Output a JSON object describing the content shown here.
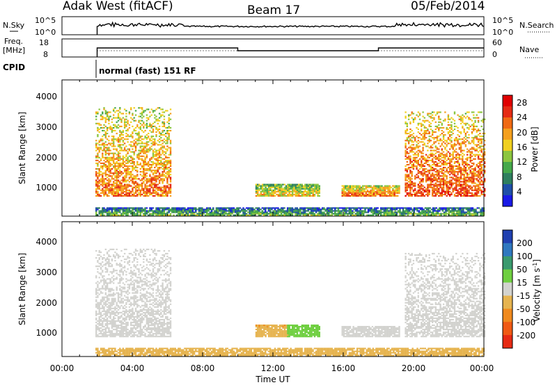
{
  "header": {
    "radar": "Adak West (fitACF)",
    "beam": "Beam 17",
    "date": "05/Feb/2014"
  },
  "status": {
    "nsky_label": "N.Sky",
    "nsky_ticks": [
      "10^5",
      "10^0"
    ],
    "nsearch_label": "N.Search",
    "nsearch_ticks": [
      "10^5",
      "10^0"
    ],
    "freq_label": "Freq.",
    "freq_unit": "[MHz]",
    "freq_ticks": [
      "18",
      "8"
    ],
    "nave_label": "Nave",
    "nave_ticks": [
      "60",
      "0"
    ],
    "cpid_label": "CPID",
    "cpid_text": "normal (fast) 151 RF",
    "freq_segments": [
      {
        "from": 2.0,
        "to": 10.0,
        "mhz": 13.0
      },
      {
        "from": 10.0,
        "to": 18.0,
        "mhz": 11.0
      },
      {
        "from": 18.0,
        "to": 24.0,
        "mhz": 13.0
      }
    ]
  },
  "chart_data": [
    {
      "type": "heatmap",
      "quantity": "Power",
      "ylabel": "Slant Range [km]",
      "ylim": [
        180,
        4500
      ],
      "y_ticks": [
        "1000",
        "2000",
        "3000",
        "4000"
      ],
      "xlim": [
        0,
        24
      ],
      "colorbar_label": "Power [dB]",
      "colorbar_ticks": [
        "4",
        "8",
        "12",
        "16",
        "20",
        "24",
        "28"
      ],
      "colorbar_range": [
        0,
        30
      ],
      "colorbar_colors": [
        "#1a1ae6",
        "#1f4fa8",
        "#2e7f5e",
        "#45a84a",
        "#8cc63f",
        "#f0d020",
        "#f5a01e",
        "#f06a14",
        "#e52b14",
        "#e00000"
      ],
      "regions": [
        {
          "t0": 1.9,
          "t1": 6.2,
          "r0": 800,
          "r1": 3600,
          "level": 22
        },
        {
          "t0": 11.0,
          "t1": 14.6,
          "r0": 800,
          "r1": 1200,
          "level": 18
        },
        {
          "t0": 15.9,
          "t1": 19.2,
          "r0": 800,
          "r1": 1150,
          "level": 22
        },
        {
          "t0": 19.5,
          "t1": 24.0,
          "r0": 800,
          "r1": 3500,
          "level": 24
        },
        {
          "t0": 1.9,
          "t1": 24.0,
          "r0": 190,
          "r1": 420,
          "level": 12
        }
      ]
    },
    {
      "type": "heatmap",
      "quantity": "Velocity",
      "ylabel": "Slant Range [km]",
      "ylim": [
        180,
        4500
      ],
      "y_ticks": [
        "1000",
        "2000",
        "3000",
        "4000"
      ],
      "xlim": [
        0,
        24
      ],
      "x_ticks": [
        "00:00",
        "04:00",
        "08:00",
        "12:00",
        "16:00",
        "20:00",
        "00:00"
      ],
      "xlabel": "Time UT",
      "colorbar_label": "Velocity [m s^-1]",
      "colorbar_ticks": [
        "200",
        "100",
        "50",
        "15",
        "-15",
        "-50",
        "-100",
        "-200"
      ],
      "colorbar_colors": [
        "#2040b0",
        "#2f78bf",
        "#3a9a6e",
        "#6fcf40",
        "#d3d3cf",
        "#e6b450",
        "#f08a1e",
        "#f05a14",
        "#e62a14"
      ],
      "regions": [
        {
          "t0": 1.9,
          "t1": 6.2,
          "r0": 800,
          "r1": 3600,
          "level": 0
        },
        {
          "t0": 11.0,
          "t1": 12.8,
          "r0": 800,
          "r1": 1200,
          "level": -40
        },
        {
          "t0": 12.8,
          "t1": 14.6,
          "r0": 800,
          "r1": 1200,
          "level": 30
        },
        {
          "t0": 15.9,
          "t1": 19.2,
          "r0": 800,
          "r1": 1150,
          "level": 0
        },
        {
          "t0": 19.5,
          "t1": 24.0,
          "r0": 800,
          "r1": 3500,
          "level": 0
        },
        {
          "t0": 1.9,
          "t1": 24.0,
          "r0": 190,
          "r1": 420,
          "level": -30
        }
      ]
    }
  ]
}
